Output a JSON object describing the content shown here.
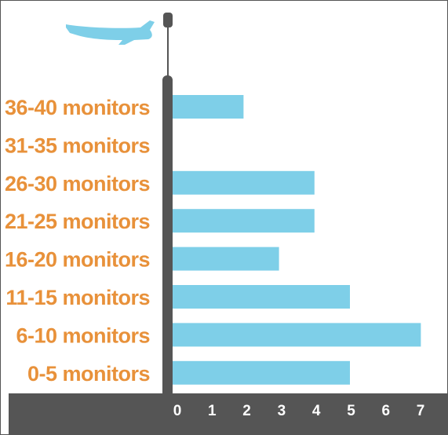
{
  "chart_data": {
    "type": "bar",
    "orientation": "horizontal",
    "categories": [
      "36-40 monitors",
      "31-35 monitors",
      "26-30 monitors",
      "21-25 monitors",
      "16-20 monitors",
      "11-15 monitors",
      "6-10 monitors",
      "0-5 monitors"
    ],
    "values": [
      2,
      0,
      4,
      4,
      3,
      5,
      7,
      5
    ],
    "xticks": [
      "0",
      "1",
      "2",
      "3",
      "4",
      "5",
      "6",
      "7"
    ],
    "xlim": [
      0,
      7
    ],
    "grid": false,
    "legend": "none",
    "title": "",
    "xlabel": "",
    "ylabel": ""
  },
  "colors": {
    "bar": "#7ecfe8",
    "label": "#e8913a",
    "axis": "#555555",
    "tick_text": "#ffffff",
    "plane": "#7ecfe8"
  },
  "icons": {
    "decoration": "airplane-icon"
  }
}
